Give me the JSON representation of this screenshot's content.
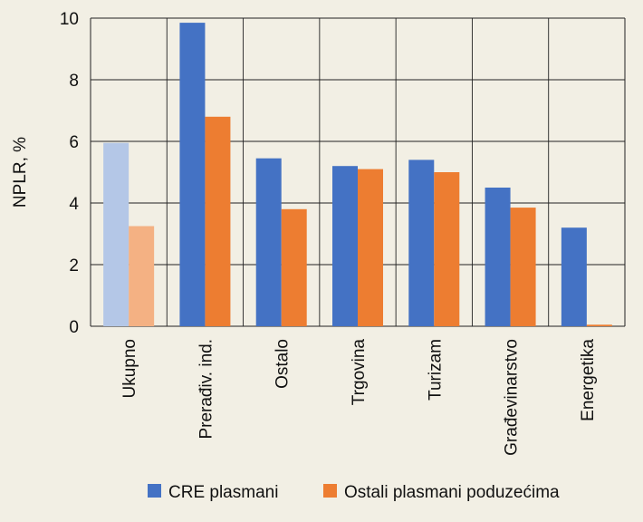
{
  "chart_data": {
    "type": "bar",
    "ylabel": "NPLR, %",
    "ylim": [
      0,
      10
    ],
    "yticks": [
      "0",
      "2",
      "4",
      "6",
      "8",
      "10"
    ],
    "categories": [
      "Ukupno",
      "Prerađiv. ind.",
      "Ostalo",
      "Trgovina",
      "Turizam",
      "Građevinarstvo",
      "Energetika"
    ],
    "series": [
      {
        "name": "CRE plasmani",
        "color": "#4472c4",
        "values": [
          5.95,
          9.85,
          5.45,
          5.2,
          5.4,
          4.5,
          3.2
        ]
      },
      {
        "name": "Ostali plasmani poduzećima",
        "color": "#ed7d31",
        "values": [
          3.25,
          6.8,
          3.8,
          5.1,
          5.0,
          3.85,
          0.05
        ]
      }
    ],
    "highlight_first_category_faded": true,
    "faded_colors": [
      "#b4c7e7",
      "#f4b183"
    ],
    "grid": true,
    "legend": "bottom"
  }
}
